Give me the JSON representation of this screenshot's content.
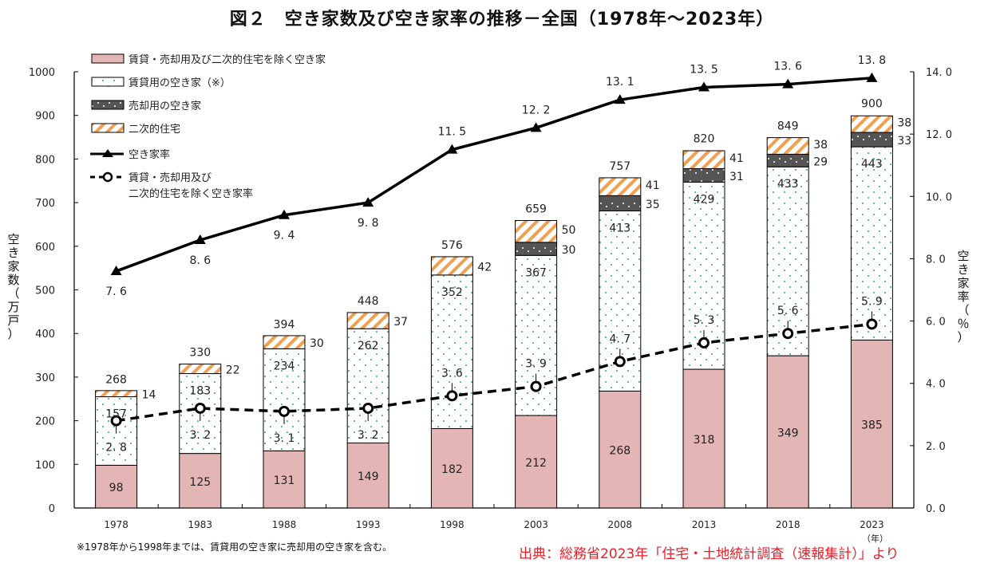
{
  "title": "図２　空き家数及び空き家率の推移－全国（1978年～2023年）",
  "note": "※1978年から1998年までは、賃貸用の空き家に売却用の空き家を含む。",
  "source": "出典：総務省2023年「住宅・土地統計調査（速報集計）」より",
  "colors": {
    "other": "#e3b5b4",
    "rental_dot": "#3a9a9a",
    "sale": "#555555",
    "secondary_stripe": "#f0a050",
    "line": "#000000",
    "source_text": "#e8202a"
  },
  "chart_data": {
    "type": "bar",
    "title": "図２　空き家数及び空き家率の推移－全国（1978年～2023年）",
    "xlabel": "（年）",
    "ylabel": "空き家数（万戸）",
    "y2label": "空き家率（％）",
    "ylim": [
      0,
      1000
    ],
    "y2lim": [
      0,
      14
    ],
    "yticks": [
      "0",
      "100",
      "200",
      "300",
      "400",
      "500",
      "600",
      "700",
      "800",
      "900",
      "1000"
    ],
    "y2ticks": [
      "0. 0",
      "2. 0",
      "4. 0",
      "6. 0",
      "8. 0",
      "10. 0",
      "12. 0",
      "14. 0"
    ],
    "categories": [
      "1978",
      "1983",
      "1988",
      "1993",
      "1998",
      "2003",
      "2008",
      "2013",
      "2018",
      "2023"
    ],
    "totals": [
      268,
      330,
      394,
      448,
      576,
      659,
      757,
      820,
      849,
      900
    ],
    "series": [
      {
        "name": "賃貸・売却用及び二次的住宅を除く空き家",
        "kind": "bar",
        "values": [
          98,
          125,
          131,
          149,
          182,
          212,
          268,
          318,
          349,
          385
        ]
      },
      {
        "name": "賃貸用の空き家（※）",
        "kind": "bar",
        "values": [
          157,
          183,
          234,
          262,
          352,
          367,
          413,
          429,
          433,
          443
        ]
      },
      {
        "name": "売却用の空き家",
        "kind": "bar",
        "values": [
          null,
          null,
          null,
          null,
          null,
          30,
          35,
          31,
          29,
          33
        ]
      },
      {
        "name": "二次的住宅",
        "kind": "bar",
        "values": [
          14,
          22,
          30,
          37,
          42,
          50,
          41,
          41,
          38,
          38
        ]
      },
      {
        "name": "空き家率",
        "kind": "line",
        "axis": "right",
        "values": [
          7.6,
          8.6,
          9.4,
          9.8,
          11.5,
          12.2,
          13.1,
          13.5,
          13.6,
          13.8
        ],
        "labels": [
          "7. 6",
          "8. 6",
          "9. 4",
          "9. 8",
          "11. 5",
          "12. 2",
          "13. 1",
          "13. 5",
          "13. 6",
          "13. 8"
        ]
      },
      {
        "name": "賃貸・売却用及び二次的住宅を除く空き家率",
        "kind": "line",
        "axis": "right",
        "style": "dashed",
        "values": [
          2.8,
          3.2,
          3.1,
          3.2,
          3.6,
          3.9,
          4.7,
          5.3,
          5.6,
          5.9
        ],
        "labels": [
          "2. 8",
          "3. 2",
          "3. 1",
          "3. 2",
          "3. 6",
          "3. 9",
          "4. 7",
          "5. 3",
          "5. 6",
          "5. 9"
        ]
      }
    ],
    "legend": {
      "placement": "top-left",
      "items": [
        "賃貸・売却用及び二次的住宅を除く空き家",
        "賃貸用の空き家（※）",
        "売却用の空き家",
        "二次的住宅",
        "空き家率",
        "賃貸・売却用及び",
        "二次的住宅を除く空き家率"
      ]
    }
  }
}
